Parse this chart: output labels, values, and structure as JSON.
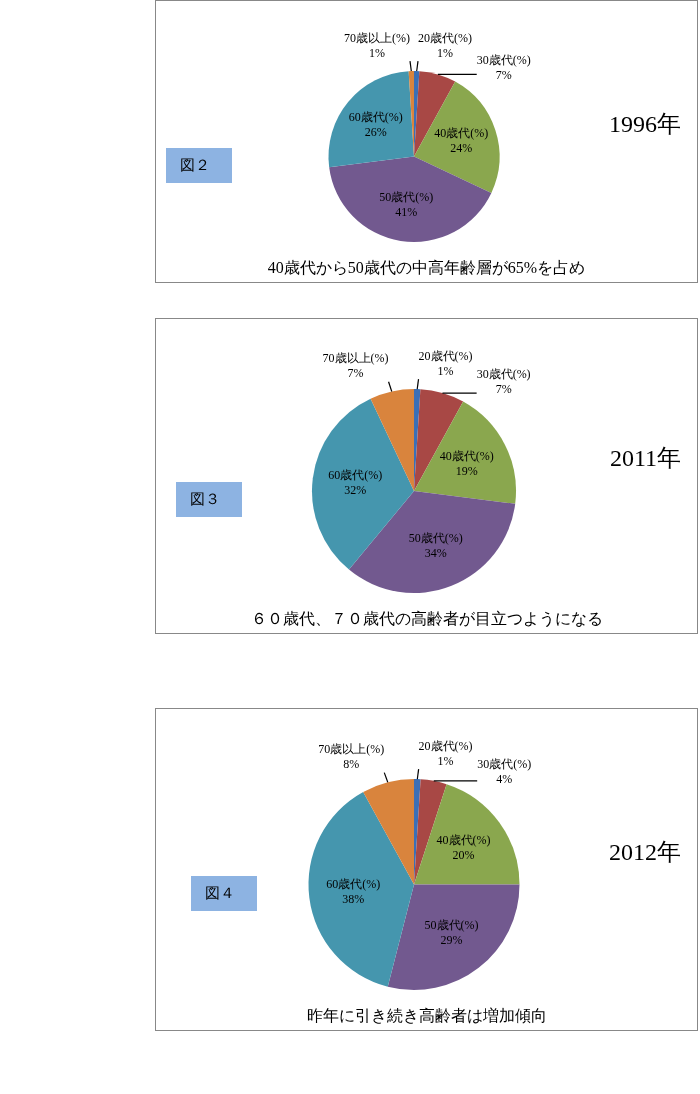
{
  "chart_data": [
    {
      "type": "pie",
      "title": "1996年",
      "subtitle": "図２",
      "annotations": [
        "40歳代から50歳代の中高年齢層が65%を占め"
      ],
      "categories": [
        "20歳代(%)",
        "30歳代(%)",
        "40歳代(%)",
        "50歳代(%)",
        "60歳代(%)",
        "70歳以上(%)"
      ],
      "values": [
        1,
        7,
        24,
        41,
        26,
        1
      ],
      "value_labels": [
        "1%",
        "7%",
        "24%",
        "41%",
        "26%",
        "1%"
      ],
      "colors": [
        "#3b6fb6",
        "#a84845",
        "#8aa74e",
        "#72598f",
        "#4596ae",
        "#d9843d"
      ]
    },
    {
      "type": "pie",
      "title": "2011年",
      "subtitle": "図３",
      "annotations": [
        "６０歳代、７０歳代の高齢者が目立つようになる"
      ],
      "categories": [
        "20歳代(%)",
        "30歳代(%)",
        "40歳代(%)",
        "50歳代(%)",
        "60歳代(%)",
        "70歳以上(%)"
      ],
      "values": [
        1,
        7,
        19,
        34,
        32,
        7
      ],
      "value_labels": [
        "1%",
        "7%",
        "19%",
        "34%",
        "32%",
        "7%"
      ],
      "colors": [
        "#3b6fb6",
        "#a84845",
        "#8aa74e",
        "#72598f",
        "#4596ae",
        "#d9843d"
      ]
    },
    {
      "type": "pie",
      "title": "2012年",
      "subtitle": "図４",
      "annotations": [
        "昨年に引き続き高齢者は増加傾向"
      ],
      "categories": [
        "20歳代(%)",
        "30歳代(%)",
        "40歳代(%)",
        "50歳代(%)",
        "60歳代(%)",
        "70歳以上(%)"
      ],
      "values": [
        1,
        4,
        20,
        29,
        38,
        8
      ],
      "value_labels": [
        "1%",
        "4%",
        "20%",
        "29%",
        "38%",
        "8%"
      ],
      "colors": [
        "#3b6fb6",
        "#a84845",
        "#8aa74e",
        "#72598f",
        "#4596ae",
        "#d9843d"
      ]
    }
  ]
}
